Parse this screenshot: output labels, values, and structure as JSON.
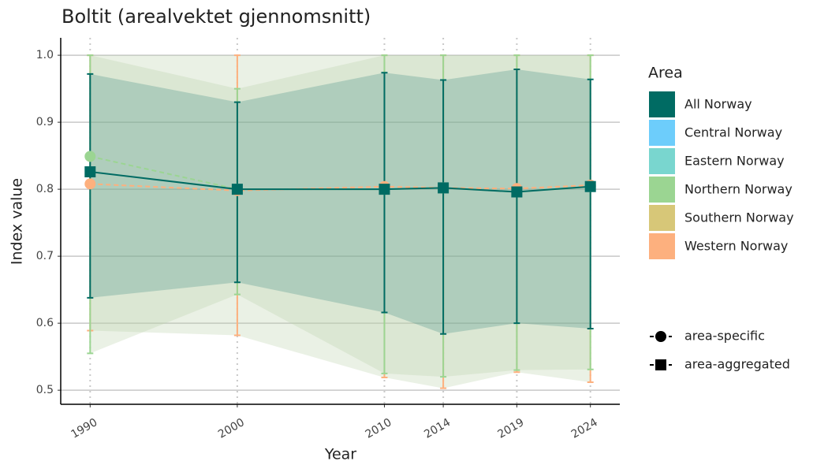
{
  "chart_data": {
    "type": "line",
    "title": "Boltit (arealvektet gjennomsnitt)",
    "x_label": "Year",
    "y_label": "Index value",
    "x": [
      1990,
      2000,
      2010,
      2014,
      2019,
      2024
    ],
    "xlim": [
      1988,
      2026
    ],
    "xticks": [
      1990,
      2000,
      2010,
      2014,
      2019,
      2024
    ],
    "ylim": [
      0.479,
      1.026
    ],
    "yticks": [
      0.5,
      0.6,
      0.7,
      0.8,
      0.9,
      {
        "value": 1.0,
        "label": "1.0"
      }
    ],
    "grid": true,
    "legend_title": "Area",
    "series": [
      {
        "name": "Western Norway",
        "color": "#fdb07e",
        "marker": "circle",
        "values": [
          0.808,
          0.798,
          0.804,
          0.802,
          0.801,
          0.806
        ],
        "lower": [
          0.589,
          0.582,
          0.519,
          0.503,
          0.527,
          0.512
        ],
        "upper": [
          1.0,
          1.0,
          1.0,
          1.0,
          1.0,
          1.0
        ]
      },
      {
        "name": "Northern Norway",
        "color": "#9bd592",
        "marker": "circle",
        "values": [
          0.849,
          0.8,
          0.8,
          0.802,
          0.796,
          0.804
        ],
        "lower": [
          0.555,
          0.643,
          0.525,
          0.52,
          0.53,
          0.531
        ],
        "upper": [
          1.0,
          0.95,
          1.0,
          1.0,
          1.0,
          1.0
        ]
      },
      {
        "name": "All Norway",
        "color": "#006b63",
        "marker": "square",
        "values": [
          0.826,
          0.8,
          0.8,
          0.802,
          0.796,
          0.804
        ],
        "lower": [
          0.638,
          0.661,
          0.616,
          0.584,
          0.6,
          0.592
        ],
        "upper": [
          0.972,
          0.93,
          0.974,
          0.963,
          0.979,
          0.964
        ]
      },
      {
        "name": "Central Norway",
        "color": "#6dcdfb",
        "marker": "circle",
        "values": [
          null,
          null,
          null,
          null,
          null,
          null
        ]
      },
      {
        "name": "Eastern Norway",
        "color": "#79d6cf",
        "marker": "circle",
        "values": [
          null,
          null,
          null,
          null,
          null,
          null
        ]
      },
      {
        "name": "Southern Norway",
        "color": "#d7c778",
        "marker": "circle",
        "values": [
          null,
          null,
          null,
          null,
          null,
          null
        ]
      }
    ],
    "legend_order": [
      2,
      3,
      4,
      1,
      5,
      0
    ],
    "shape_legend": [
      "area-specific",
      "area-aggregated"
    ]
  }
}
